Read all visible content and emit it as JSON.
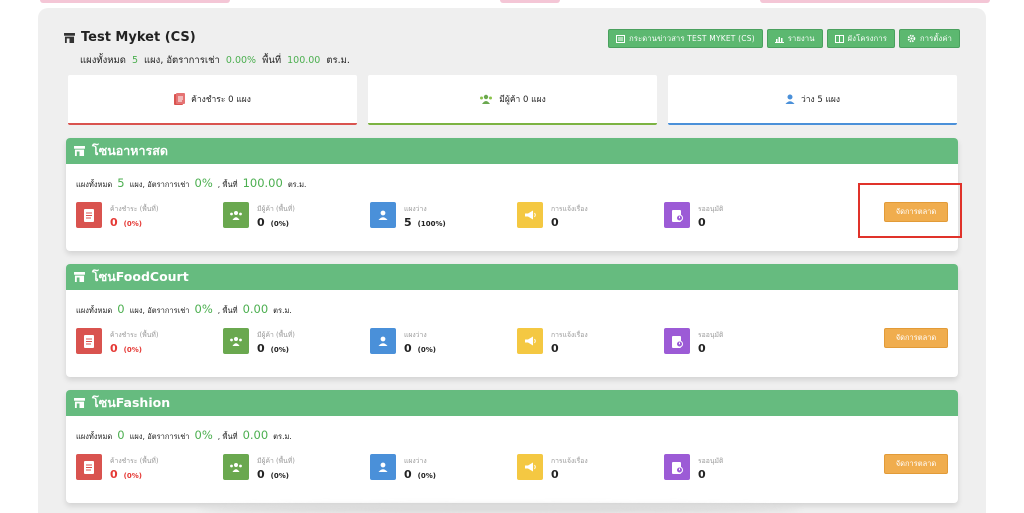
{
  "header": {
    "title": "Test Myket (CS)",
    "stalls_label": "แผงทั้งหมด",
    "stalls_count": "5",
    "rent_label": "แผง, อัตราการเช่า",
    "rent_rate": "0.00%",
    "area_label": "พื้นที่",
    "area_value": "100.00",
    "area_unit": "ตร.ม."
  },
  "actions": [
    {
      "label": "กระดานข่าวสาร TEST MYKET (CS)",
      "icon": "board-icon"
    },
    {
      "label": "รายงาน",
      "icon": "bar-chart-icon"
    },
    {
      "label": "ผังโครงการ",
      "icon": "map-icon"
    },
    {
      "label": "การตั้งค่า",
      "icon": "gear-icon"
    }
  ],
  "summary": [
    {
      "label": "ค้างชำระ 0 แผง",
      "icon": "document-icon",
      "color": "#d9534f"
    },
    {
      "label": "มีผู้ค้า 0 แผง",
      "icon": "users-icon",
      "color": "#6aa84f"
    },
    {
      "label": "ว่าง 5 แผง",
      "icon": "user-icon",
      "color": "#4a90d9"
    }
  ],
  "zones": [
    {
      "name": "โซนอาหารสด",
      "stalls_label": "แผงทั้งหมด",
      "stalls": "5",
      "rent_label": "แผง, อัตราการเช่า",
      "rent": "0%",
      "area_label": ", พื้นที่",
      "area": "100.00",
      "unit": "ตร.ม.",
      "stats": [
        {
          "label": "ค้างชำระ (พื้นที่)",
          "value": "0",
          "pct": "(0%)"
        },
        {
          "label": "มีผู้ค้า (พื้นที่)",
          "value": "0",
          "pct": "(0%)"
        },
        {
          "label": "แผงว่าง",
          "value": "5",
          "pct": "(100%)"
        },
        {
          "label": "การแจ้งเรื่อง",
          "value": "0",
          "pct": ""
        },
        {
          "label": "รออนุมัติ",
          "value": "0",
          "pct": ""
        }
      ],
      "button": "จัดการตลาด"
    },
    {
      "name": "โซนFoodCourt",
      "stalls_label": "แผงทั้งหมด",
      "stalls": "0",
      "rent_label": "แผง, อัตราการเช่า",
      "rent": "0%",
      "area_label": ", พื้นที่",
      "area": "0.00",
      "unit": "ตร.ม.",
      "stats": [
        {
          "label": "ค้างชำระ (พื้นที่)",
          "value": "0",
          "pct": "(0%)"
        },
        {
          "label": "มีผู้ค้า (พื้นที่)",
          "value": "0",
          "pct": "(0%)"
        },
        {
          "label": "แผงว่าง",
          "value": "0",
          "pct": "(0%)"
        },
        {
          "label": "การแจ้งเรื่อง",
          "value": "0",
          "pct": ""
        },
        {
          "label": "รออนุมัติ",
          "value": "0",
          "pct": ""
        }
      ],
      "button": "จัดการตลาด"
    },
    {
      "name": "โซนFashion",
      "stalls_label": "แผงทั้งหมด",
      "stalls": "0",
      "rent_label": "แผง, อัตราการเช่า",
      "rent": "0%",
      "area_label": ", พื้นที่",
      "area": "0.00",
      "unit": "ตร.ม.",
      "stats": [
        {
          "label": "ค้างชำระ (พื้นที่)",
          "value": "0",
          "pct": "(0%)"
        },
        {
          "label": "มีผู้ค้า (พื้นที่)",
          "value": "0",
          "pct": "(0%)"
        },
        {
          "label": "แผงว่าง",
          "value": "0",
          "pct": "(0%)"
        },
        {
          "label": "การแจ้งเรื่อง",
          "value": "0",
          "pct": ""
        },
        {
          "label": "รออนุมัติ",
          "value": "0",
          "pct": ""
        }
      ],
      "button": "จัดการตลาด"
    }
  ]
}
